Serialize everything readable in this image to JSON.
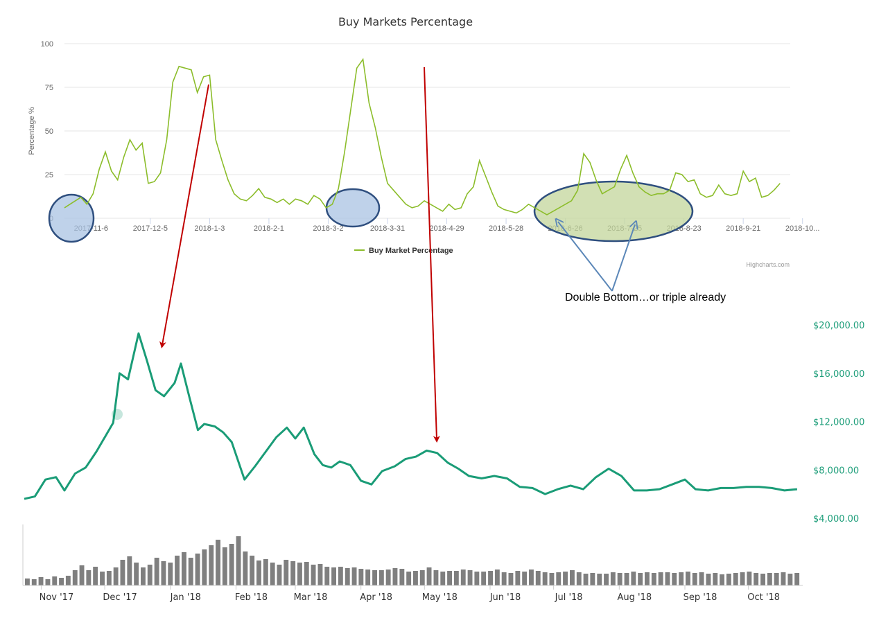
{
  "colors": {
    "top_line": "#8cbd2b",
    "price_line": "#1a9c77",
    "volume_bar": "#7f7f7f",
    "grid": "#e6e6e6",
    "red_arrow": "#c00000",
    "blue_arrow": "#5b87b8",
    "blue_circle_fill": "#aac3e3",
    "green_ellipse_fill": "#c3d69b",
    "circle_stroke": "#2f4f7f"
  },
  "chart_data": [
    {
      "type": "line",
      "title": "Buy Markets Percentage",
      "ylabel": "Percentage %",
      "xlabel": "",
      "ylim": [
        0,
        100
      ],
      "yticks": [
        "100",
        "75",
        "50",
        "25",
        "0"
      ],
      "xticks": [
        "2017-11-6",
        "2017-12-5",
        "2018-1-3",
        "2018-2-1",
        "2018-3-2",
        "2018-3-31",
        "2018-4-29",
        "2018-5-28",
        "2018-6-26",
        "2018-7-25",
        "2018-8-23",
        "2018-9-21",
        "2018-10..."
      ],
      "legend": "bottom-center",
      "credit": "Highcharts.com",
      "grid": true,
      "series": [
        {
          "name": "Buy Market Percentage",
          "x_dates": [
            "2017-10-24",
            "2017-10-28",
            "2017-11-1",
            "2017-11-4",
            "2017-11-7",
            "2017-11-10",
            "2017-11-13",
            "2017-11-16",
            "2017-11-19",
            "2017-11-22",
            "2017-11-25",
            "2017-11-28",
            "2017-12-1",
            "2017-12-4",
            "2017-12-7",
            "2017-12-10",
            "2017-12-13",
            "2017-12-16",
            "2017-12-19",
            "2017-12-22",
            "2017-12-25",
            "2017-12-28",
            "2017-12-31",
            "2018-1-3",
            "2018-1-6",
            "2018-1-9",
            "2018-1-12",
            "2018-1-15",
            "2018-1-18",
            "2018-1-21",
            "2018-1-24",
            "2018-1-27",
            "2018-1-30",
            "2018-2-2",
            "2018-2-5",
            "2018-2-8",
            "2018-2-11",
            "2018-2-14",
            "2018-2-17",
            "2018-2-20",
            "2018-2-23",
            "2018-2-26",
            "2018-3-1",
            "2018-3-4",
            "2018-3-7",
            "2018-3-10",
            "2018-3-13",
            "2018-3-16",
            "2018-3-19",
            "2018-3-22",
            "2018-3-25",
            "2018-3-28",
            "2018-3-31",
            "2018-4-3",
            "2018-4-6",
            "2018-4-9",
            "2018-4-12",
            "2018-4-15",
            "2018-4-18",
            "2018-4-21",
            "2018-4-24",
            "2018-4-27",
            "2018-4-30",
            "2018-5-3",
            "2018-5-6",
            "2018-5-9",
            "2018-5-12",
            "2018-5-15",
            "2018-5-18",
            "2018-5-21",
            "2018-5-24",
            "2018-5-27",
            "2018-5-30",
            "2018-6-2",
            "2018-6-5",
            "2018-6-8",
            "2018-6-11",
            "2018-6-14",
            "2018-6-17",
            "2018-6-20",
            "2018-6-23",
            "2018-6-26",
            "2018-6-29",
            "2018-7-2",
            "2018-7-5",
            "2018-7-8",
            "2018-7-11",
            "2018-7-14",
            "2018-7-17",
            "2018-7-20",
            "2018-7-23",
            "2018-7-26",
            "2018-7-29",
            "2018-8-1",
            "2018-8-4",
            "2018-8-7",
            "2018-8-10",
            "2018-8-13",
            "2018-8-16",
            "2018-8-19",
            "2018-8-22",
            "2018-8-25",
            "2018-8-28",
            "2018-8-31",
            "2018-9-3",
            "2018-9-6",
            "2018-9-9",
            "2018-9-12",
            "2018-9-15",
            "2018-9-18",
            "2018-9-21",
            "2018-9-24",
            "2018-9-27",
            "2018-9-30",
            "2018-10-3",
            "2018-10-6",
            "2018-10-9"
          ],
          "values": [
            6,
            9,
            12,
            8,
            14,
            28,
            38,
            27,
            22,
            35,
            45,
            39,
            43,
            20,
            21,
            26,
            45,
            78,
            87,
            86,
            85,
            72,
            81,
            82,
            45,
            33,
            22,
            14,
            11,
            10,
            13,
            17,
            12,
            11,
            9,
            11,
            8,
            11,
            10,
            8,
            13,
            11,
            6,
            8,
            17,
            38,
            62,
            86,
            91,
            66,
            52,
            35,
            20,
            16,
            12,
            8,
            6,
            7,
            10,
            8,
            6,
            4,
            8,
            5,
            6,
            14,
            18,
            33,
            24,
            15,
            7,
            5,
            4,
            3,
            5,
            8,
            6,
            4,
            2,
            4,
            6,
            8,
            10,
            16,
            37,
            32,
            22,
            14,
            16,
            18,
            28,
            36,
            26,
            18,
            15,
            13,
            14,
            14,
            16,
            26,
            25,
            21,
            22,
            14,
            12,
            13,
            19,
            14,
            13,
            14,
            27,
            21,
            23,
            12,
            13,
            16,
            20
          ]
        }
      ]
    },
    {
      "type": "line",
      "title": "",
      "yticks": [
        "$20,000.00",
        "$16,000.00",
        "$12,000.00",
        "$8,000.00",
        "$4,000.00"
      ],
      "ylim": [
        4000,
        20000
      ],
      "xticks": [
        "Nov '17",
        "Dec '17",
        "Jan '18",
        "Feb '18",
        "Mar '18",
        "Apr '18",
        "May '18",
        "Jun '18",
        "Jul '18",
        "Aug '18",
        "Sep '18",
        "Oct '18"
      ],
      "series": [
        {
          "x_dates": [
            "2017-10-24",
            "2017-10-29",
            "2017-11-3",
            "2017-11-8",
            "2017-11-12",
            "2017-11-17",
            "2017-11-22",
            "2017-11-27",
            "2017-12-1",
            "2017-12-5",
            "2017-12-8",
            "2017-12-12",
            "2017-12-17",
            "2017-12-21",
            "2017-12-25",
            "2017-12-29",
            "2018-1-3",
            "2018-1-6",
            "2018-1-10",
            "2018-1-14",
            "2018-1-17",
            "2018-1-22",
            "2018-1-26",
            "2018-1-30",
            "2018-2-5",
            "2018-2-10",
            "2018-2-15",
            "2018-2-20",
            "2018-2-25",
            "2018-3-1",
            "2018-3-5",
            "2018-3-10",
            "2018-3-14",
            "2018-3-18",
            "2018-3-22",
            "2018-3-27",
            "2018-4-1",
            "2018-4-6",
            "2018-4-11",
            "2018-4-17",
            "2018-4-22",
            "2018-4-27",
            "2018-5-2",
            "2018-5-7",
            "2018-5-12",
            "2018-5-17",
            "2018-5-22",
            "2018-5-28",
            "2018-6-3",
            "2018-6-9",
            "2018-6-15",
            "2018-6-21",
            "2018-6-27",
            "2018-7-3",
            "2018-7-9",
            "2018-7-15",
            "2018-7-21",
            "2018-7-27",
            "2018-8-2",
            "2018-8-8",
            "2018-8-14",
            "2018-8-20",
            "2018-8-26",
            "2018-9-1",
            "2018-9-6",
            "2018-9-12",
            "2018-9-18",
            "2018-9-24",
            "2018-9-30",
            "2018-10-6",
            "2018-10-12",
            "2018-10-18",
            "2018-10-24"
          ],
          "values": [
            5600,
            5800,
            7200,
            7400,
            6300,
            7700,
            8200,
            9500,
            10700,
            11900,
            16000,
            15500,
            19300,
            17000,
            14600,
            14100,
            15200,
            16800,
            14000,
            11300,
            11800,
            11600,
            11100,
            10300,
            7200,
            8300,
            9500,
            10700,
            11500,
            10600,
            11500,
            9300,
            8400,
            8200,
            8700,
            8400,
            7100,
            6800,
            7900,
            8300,
            8900,
            9100,
            9600,
            9400,
            8600,
            8100,
            7500,
            7300,
            7500,
            7300,
            6600,
            6500,
            6000,
            6400,
            6700,
            6400,
            7400,
            8100,
            7500,
            6300,
            6300,
            6400,
            6800,
            7200,
            6400,
            6300,
            6500,
            6500,
            6600,
            6600,
            6500,
            6300,
            6400
          ]
        }
      ]
    }
  ],
  "volume_bars": [
    10,
    9,
    12,
    9,
    13,
    11,
    14,
    22,
    29,
    22,
    27,
    20,
    21,
    26,
    37,
    42,
    33,
    26,
    30,
    40,
    35,
    33,
    43,
    48,
    40,
    46,
    52,
    58,
    66,
    55,
    60,
    71,
    49,
    43,
    36,
    38,
    33,
    30,
    37,
    35,
    33,
    34,
    30,
    31,
    27,
    26,
    27,
    25,
    26,
    24,
    23,
    22,
    22,
    23,
    25,
    24,
    20,
    21,
    22,
    26,
    22,
    20,
    21,
    21,
    23,
    22,
    20,
    20,
    21,
    23,
    19,
    18,
    21,
    20,
    23,
    21,
    19,
    18,
    19,
    20,
    22,
    19,
    17,
    18,
    17,
    17,
    19,
    18,
    18,
    20,
    18,
    19,
    18,
    19,
    19,
    18,
    19,
    20,
    18,
    19,
    17,
    18,
    16,
    17,
    18,
    19,
    20,
    18,
    17,
    18,
    18,
    19,
    17,
    18
  ],
  "annotation_text": "Double Bottom…or triple already"
}
